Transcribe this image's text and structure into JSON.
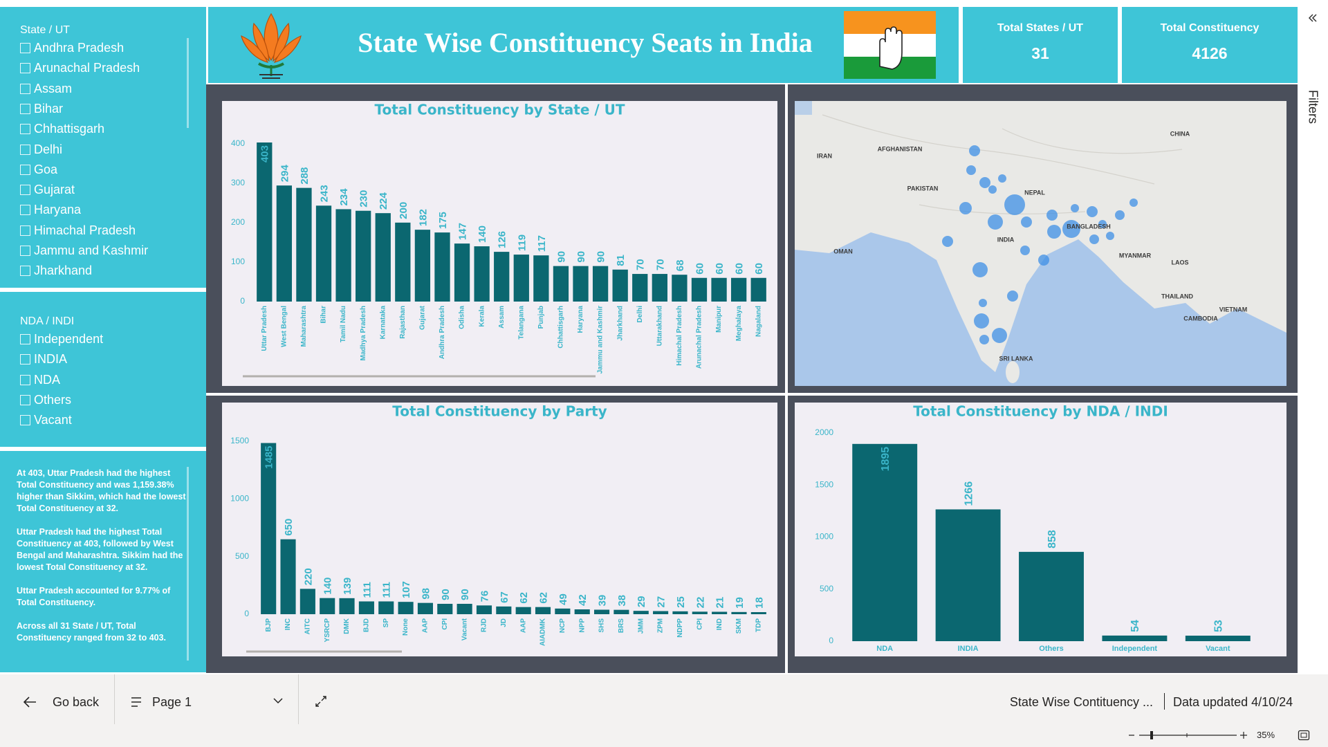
{
  "header": {
    "title": "State Wise Constituency Seats in India"
  },
  "kpis": [
    {
      "label": "Total States / UT",
      "value": "31"
    },
    {
      "label": "Total Constituency",
      "value": "4126"
    }
  ],
  "slicers": [
    {
      "title": "State / UT",
      "items": [
        "Andhra Pradesh",
        "Arunachal Pradesh",
        "Assam",
        "Bihar",
        "Chhattisgarh",
        "Delhi",
        "Goa",
        "Gujarat",
        "Haryana",
        "Himachal Pradesh",
        "Jammu and Kashmir",
        "Jharkhand"
      ]
    },
    {
      "title": "NDA / INDI",
      "items": [
        "Independent",
        "INDIA",
        "NDA",
        "Others",
        "Vacant"
      ]
    }
  ],
  "narrative": [
    "At 403, Uttar Pradesh had the highest Total Constituency and was 1,159.38% higher than Sikkim, which had the lowest Total Constituency at 32.",
    "Uttar Pradesh had the highest Total Constituency at 403, followed by West Bengal and Maharashtra. Sikkim had the lowest Total Constituency at 32.",
    "Uttar Pradesh accounted for 9.77% of Total Constituency.",
    "Across all 31 State / UT, Total Constituency ranged from 32 to 403."
  ],
  "map": {
    "labels": [
      "AFGHANISTAN",
      "IRAN",
      "PAKISTAN",
      "NEPAL",
      "INDIA",
      "CHINA",
      "MYANMAR",
      "LAOS",
      "THAILAND",
      "VIETNAM",
      "CAMBODIA",
      "OMAN",
      "SRI LANKA",
      "BANGLADESH"
    ]
  },
  "chart_data": [
    {
      "type": "bar",
      "title": "Total Constituency by State / UT",
      "categories": [
        "Uttar Pradesh",
        "West Bengal",
        "Maharashtra",
        "Bihar",
        "Tamil Nadu",
        "Madhya Pradesh",
        "Karnataka",
        "Rajasthan",
        "Gujarat",
        "Andhra Pradesh",
        "Odisha",
        "Kerala",
        "Assam",
        "Telangana",
        "Punjab",
        "Chhattisgarh",
        "Haryana",
        "Jammu and Kashmir",
        "Jharkhand",
        "Delhi",
        "Uttarakhand",
        "Himachal Pradesh",
        "Arunachal Pradesh",
        "Manipur",
        "Meghalaya",
        "Nagaland"
      ],
      "values": [
        403,
        294,
        288,
        243,
        234,
        230,
        224,
        200,
        182,
        175,
        147,
        140,
        126,
        119,
        117,
        90,
        90,
        90,
        81,
        70,
        70,
        68,
        60,
        60,
        60,
        60
      ],
      "color": "#0b6770",
      "ylim": [
        0,
        410
      ],
      "yticks": [
        0,
        100,
        200,
        300,
        400
      ],
      "grid": false
    },
    {
      "type": "bar",
      "title": "Total Constituency by Party",
      "categories": [
        "BJP",
        "INC",
        "AITC",
        "YSRCP",
        "DMK",
        "BJD",
        "SP",
        "None",
        "AAP",
        "CPI",
        "Vacant",
        "RJD",
        "JD",
        "AAP",
        "AIADMK",
        "NCP",
        "NPP",
        "SHS",
        "BRS",
        "JMM",
        "ZPM",
        "NDPP",
        "CPI",
        "IND",
        "SKM",
        "TDP"
      ],
      "values": [
        1485,
        650,
        220,
        140,
        139,
        111,
        111,
        107,
        98,
        90,
        90,
        76,
        67,
        62,
        62,
        49,
        42,
        39,
        38,
        29,
        27,
        25,
        22,
        21,
        19,
        18
      ],
      "color": "#0b6770",
      "ylim": [
        0,
        1500
      ],
      "yticks": [
        0,
        500,
        1000,
        1500
      ],
      "grid": false
    },
    {
      "type": "bar",
      "title": "Total Constituency by NDA / INDI",
      "categories": [
        "NDA",
        "INDIA",
        "Others",
        "Independent",
        "Vacant"
      ],
      "values": [
        1895,
        1266,
        858,
        54,
        53
      ],
      "color": "#0b6770",
      "ylim": [
        0,
        2000
      ],
      "yticks": [
        0,
        500,
        1000,
        1500,
        2000
      ],
      "grid": false
    }
  ],
  "filters_pane": {
    "label": "Filters"
  },
  "footer": {
    "back": "Go back",
    "page": "Page 1",
    "report": "State Wise Contituency ...",
    "updated": "Data updated 4/10/24",
    "zoom": "35%"
  }
}
